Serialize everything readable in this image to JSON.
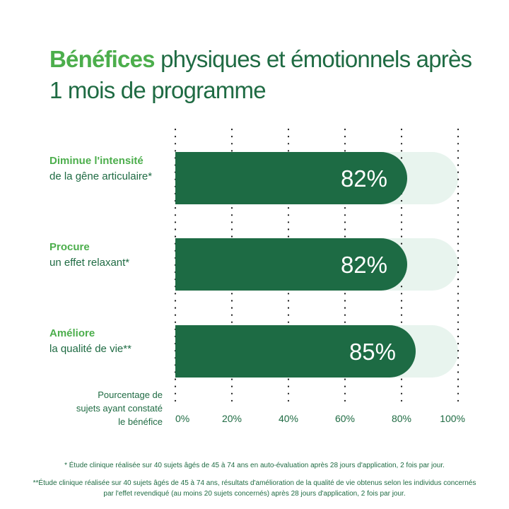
{
  "title": {
    "accent": "Bénéfices",
    "rest": " physiques et émotionnels après 1 mois de programme"
  },
  "colors": {
    "bar": "#1d6b44",
    "bar_track": "#e8f4ee",
    "accent_green": "#4cae4c",
    "dark_green": "#1f6b43"
  },
  "chart_data": {
    "type": "bar",
    "orientation": "horizontal",
    "categories": [
      {
        "line1": "Diminue l'intensité",
        "line2": "de la gêne articulaire*"
      },
      {
        "line1": "Procure",
        "line2": "un effet relaxant*"
      },
      {
        "line1": "Améliore",
        "line2": "la qualité de vie**"
      }
    ],
    "values": [
      82,
      82,
      85
    ],
    "value_labels": [
      "82%",
      "82%",
      "85%"
    ],
    "xlim": [
      0,
      100
    ],
    "xticks": [
      0,
      20,
      40,
      60,
      80,
      100
    ],
    "xtick_labels": [
      "0%",
      "20%",
      "40%",
      "60%",
      "80%",
      "100%"
    ],
    "xlabel": "Pourcentage de sujets ayant constaté le bénéfice",
    "xlabel_lines": [
      "Pourcentage de",
      "sujets ayant constaté",
      "le bénéfice"
    ],
    "grid": "vertical dotted"
  },
  "footnotes": [
    "* Étude clinique réalisée sur 40 sujets âgés de 45 à 74 ans en auto-évaluation après 28 jours d'application, 2 fois par jour.",
    "**Étude clinique réalisée sur 40 sujets âgés de 45 à 74 ans, résultats d'amélioration de la qualité de vie obtenus selon les individus concernés par l'effet revendiqué (au moins 20 sujets concernés) après 28 jours d'application, 2 fois par jour."
  ]
}
